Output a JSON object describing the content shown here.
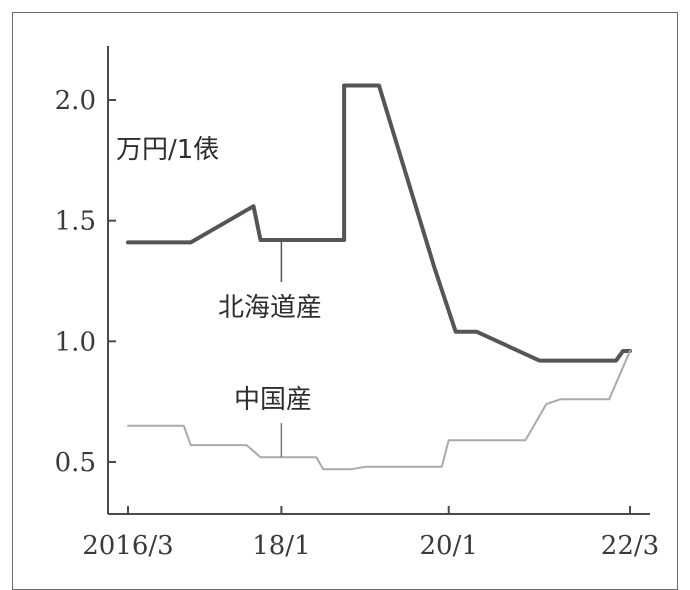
{
  "chart_data": {
    "type": "line",
    "ylabel": "万円/1俵",
    "ylim": [
      0.3,
      2.2
    ],
    "xlim": [
      "2016-03",
      "2022-05"
    ],
    "y_ticks": [
      "0.5",
      "1.0",
      "1.5",
      "2.0"
    ],
    "x_ticks": [
      {
        "label": "2016/3",
        "date": "2016-03"
      },
      {
        "label": "18/1",
        "date": "2018-01"
      },
      {
        "label": "20/1",
        "date": "2020-01"
      },
      {
        "label": "22/3",
        "date": "2022-03"
      }
    ],
    "series": [
      {
        "name": "北海道産",
        "color": "#555555",
        "points": [
          [
            "2016-03",
            1.41
          ],
          [
            "2016-12",
            1.41
          ],
          [
            "2017-09",
            1.56
          ],
          [
            "2017-10",
            1.42
          ],
          [
            "2018-10",
            1.42
          ],
          [
            "2018-10",
            2.06
          ],
          [
            "2019-03",
            2.06
          ],
          [
            "2019-11",
            1.3
          ],
          [
            "2020-02",
            1.04
          ],
          [
            "2020-05",
            1.04
          ],
          [
            "2021-02",
            0.92
          ],
          [
            "2022-01",
            0.92
          ],
          [
            "2022-02",
            0.96
          ],
          [
            "2022-03",
            0.96
          ]
        ]
      },
      {
        "name": "中国産",
        "color": "#aaaaaa",
        "points": [
          [
            "2016-03",
            0.65
          ],
          [
            "2016-11",
            0.65
          ],
          [
            "2016-12",
            0.57
          ],
          [
            "2017-08",
            0.57
          ],
          [
            "2017-10",
            0.52
          ],
          [
            "2018-06",
            0.52
          ],
          [
            "2018-07",
            0.47
          ],
          [
            "2018-11",
            0.47
          ],
          [
            "2019-01",
            0.48
          ],
          [
            "2019-12",
            0.48
          ],
          [
            "2020-01",
            0.59
          ],
          [
            "2020-12",
            0.59
          ],
          [
            "2021-03",
            0.74
          ],
          [
            "2021-05",
            0.76
          ],
          [
            "2021-12",
            0.76
          ],
          [
            "2022-03",
            0.96
          ]
        ]
      }
    ],
    "annotations": [
      {
        "text": "北海道産",
        "series": "北海道産"
      },
      {
        "text": "中国産",
        "series": "中国産"
      }
    ]
  }
}
